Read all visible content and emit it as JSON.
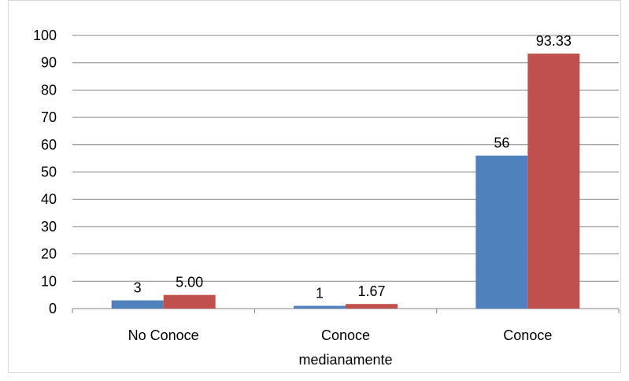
{
  "chart_data": {
    "type": "bar",
    "categories": [
      [
        "No Conoce"
      ],
      [
        "Conoce",
        "medianamente"
      ],
      [
        "Conoce"
      ]
    ],
    "series": [
      {
        "values": [
          3,
          1,
          56
        ],
        "labels": [
          "3",
          "1",
          "56"
        ]
      },
      {
        "values": [
          5.0,
          1.67,
          93.33
        ],
        "labels": [
          "5.00",
          "1.67",
          "93.33"
        ]
      }
    ],
    "ylim": [
      0,
      100
    ],
    "yticks": [
      0,
      10,
      20,
      30,
      40,
      50,
      60,
      70,
      80,
      90,
      100
    ],
    "grid": true,
    "colors": [
      "#4F81BD",
      "#C0504D"
    ],
    "gridColor": "#868686",
    "title": "",
    "xlabel": "",
    "ylabel": ""
  }
}
